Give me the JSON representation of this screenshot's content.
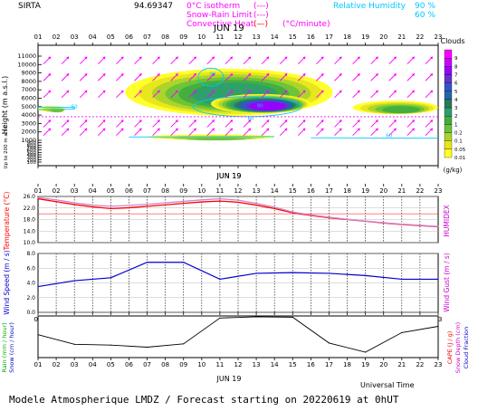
{
  "header": {
    "station": "SIRTA",
    "coords": "94.69347",
    "legend_lines": [
      {
        "label": "0°C isotherm",
        "sample": "(---)",
        "color": "#ff00ff"
      },
      {
        "label": "Snow-Rain Limit",
        "sample": "(---)",
        "color": "#ff00ff"
      },
      {
        "label": "Convective Heat.",
        "sample": "(—)",
        "unit": "(°C/minute)",
        "color": "#ff0000"
      }
    ],
    "relative_humidity_label": "Relative Humidity",
    "rh_levels": [
      "90 %",
      "60 %"
    ],
    "rh_color": "#00c8ff"
  },
  "footer": {
    "universal_time": "Universal Time",
    "forecast_text": "Modele Atmospherique LMDZ / Forecast starting on 20220619 at 0hUT"
  },
  "chart_data": [
    {
      "type": "heatmap",
      "name": "clouds",
      "date_label": "JUN 19",
      "x_hours": [
        "01",
        "02",
        "03",
        "04",
        "05",
        "06",
        "07",
        "08",
        "09",
        "10",
        "11",
        "12",
        "13",
        "14",
        "15",
        "16",
        "17",
        "18",
        "19",
        "20",
        "21",
        "22",
        "23"
      ],
      "y_label": "Height (m a.s.l.)",
      "y_sub_label": "Up to 200 m a.s.l.",
      "y_ticks": [
        "11000",
        "10000",
        "9000",
        "8000",
        "7000",
        "6000",
        "5000",
        "4000",
        "3000",
        "2000",
        "1000",
        "900",
        "800",
        "700",
        "600",
        "500",
        "400",
        "300",
        "200",
        "100"
      ],
      "colorbar_title": "Clouds",
      "colorbar_unit": "(g/kg)",
      "colorbar_ticks": [
        "9",
        "8",
        "7",
        "6",
        "5",
        "4",
        "3",
        "2",
        "1",
        "0.2",
        "0.1",
        "0.05",
        "0.01"
      ],
      "colorbar_colors": [
        "#ff00ff",
        "#cc00ff",
        "#9900ff",
        "#6633cc",
        "#3355cc",
        "#2266aa",
        "#2a7a5a",
        "#2e9e6e",
        "#3fae3f",
        "#6ac23a",
        "#a9d42a",
        "#e7e61c",
        "#ffff22"
      ],
      "isotherm_height_m": 3800,
      "cloud_layers": [
        {
          "from_hour": 5.8,
          "to_hour": 17.2,
          "base_m": 3900,
          "top_m": 9500,
          "max": "2"
        },
        {
          "from_hour": 10.5,
          "to_hour": 16.0,
          "base_m": 4200,
          "top_m": 6500,
          "max": "7"
        },
        {
          "from_hour": 1.0,
          "to_hour": 2.5,
          "base_m": 4400,
          "top_m": 5100,
          "max": "0.2"
        },
        {
          "from_hour": 18.3,
          "to_hour": 23.0,
          "base_m": 4100,
          "top_m": 5700,
          "max": "1"
        },
        {
          "from_hour": 7.0,
          "to_hour": 14.0,
          "base_m": 1100,
          "top_m": 1700,
          "max": "0.2"
        }
      ],
      "contour_labels": [
        "60",
        "60",
        "60",
        "90",
        "90"
      ]
    },
    {
      "type": "line",
      "name": "temperature",
      "date_label": "JUN 19",
      "ylabel": "Temperature (°C)",
      "ylabel_right": "HUMIDEX",
      "y_ticks": [
        "26.0",
        "22.0",
        "18.0",
        "14.0",
        "10.0"
      ],
      "ylim": [
        10.0,
        26.0
      ],
      "x": [
        1,
        2,
        3,
        4,
        5,
        6,
        7,
        8,
        9,
        10,
        11,
        12,
        13,
        14,
        15,
        16,
        17,
        18,
        19,
        20,
        21,
        22,
        23
      ],
      "series": [
        {
          "name": "Temperature",
          "color": "#ff0000",
          "values": [
            25.2,
            24.2,
            23.2,
            22.4,
            21.8,
            22.1,
            22.6,
            23.1,
            23.6,
            24.1,
            24.4,
            24.0,
            23.0,
            21.8,
            20.3,
            19.4,
            18.6,
            18.0,
            17.4,
            16.8,
            16.3,
            15.9,
            15.5
          ]
        },
        {
          "name": "Humidex",
          "color": "#cc88cc",
          "values": [
            25.6,
            24.8,
            23.8,
            23.0,
            22.6,
            22.9,
            23.3,
            23.8,
            24.3,
            24.8,
            25.2,
            24.7,
            23.6,
            22.3,
            20.6,
            19.6,
            18.8,
            18.1,
            17.5,
            16.9,
            16.4,
            16.0,
            15.6
          ]
        }
      ],
      "hline": 20.0
    },
    {
      "type": "line",
      "name": "wind",
      "ylabel": "Wind Speed (m / s)",
      "ylabel_right": "Wind Gust (m / s)",
      "y_ticks": [
        "8.0",
        "6.0",
        "4.0",
        "2.0",
        "0.0"
      ],
      "ylim": [
        0.0,
        8.0
      ],
      "x": [
        1,
        3,
        5,
        7,
        9,
        11,
        13,
        15,
        17,
        19,
        21,
        23
      ],
      "series": [
        {
          "name": "Wind Speed",
          "color": "#0000cc",
          "values": [
            3.5,
            4.3,
            4.7,
            6.8,
            6.8,
            4.5,
            5.3,
            5.4,
            5.3,
            5.0,
            4.5,
            4.5
          ]
        }
      ]
    },
    {
      "type": "line",
      "name": "rain",
      "date_label": "JUN 19",
      "ylabel": "Rain (mm / hour)",
      "ylabel2": "Snow (cm / hour)",
      "ylabel_right": "CAPE (J / g)",
      "ylabel_right2": "Snow Depth (cm)",
      "ylabel_right3": "Cloud Fraction",
      "x": [
        1,
        3,
        5,
        7,
        9,
        11,
        13,
        15,
        17,
        19,
        21,
        23
      ],
      "series": [
        {
          "name": "Cloud Fraction",
          "color": "#000000",
          "values": [
            0.55,
            0.32,
            0.3,
            0.25,
            0.33,
            0.95,
            0.98,
            0.97,
            0.35,
            0.13,
            0.6,
            0.75
          ]
        }
      ],
      "ylim": [
        0.0,
        1.0
      ]
    }
  ]
}
